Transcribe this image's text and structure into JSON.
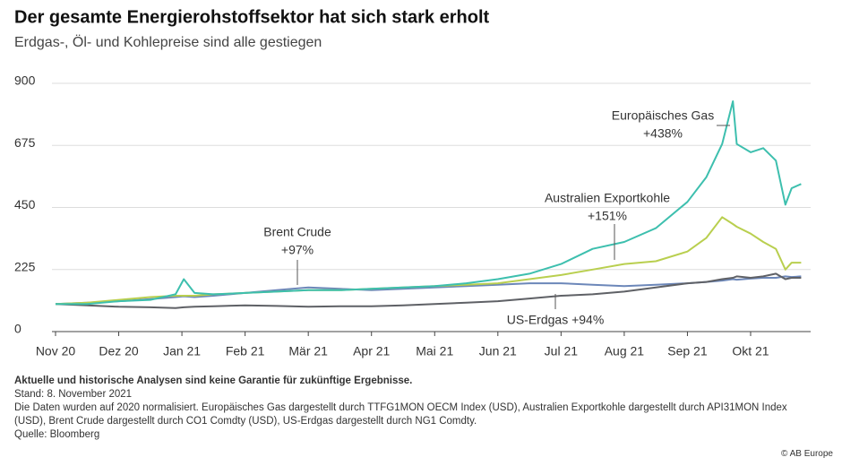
{
  "chart_data": {
    "type": "line",
    "title": "Der gesamte Energierohstoffsektor hat sich stark erholt",
    "subtitle": "Erdgas-, Öl- und Kohlepreise sind alle gestiegen",
    "x": [
      0,
      0.5,
      1,
      1.5,
      1.9,
      2.03,
      2.2,
      2.5,
      3,
      3.5,
      4,
      4.5,
      5,
      5.5,
      6,
      6.5,
      7,
      7.5,
      8,
      8.5,
      9,
      9.5,
      10,
      10.3,
      10.55,
      10.72,
      10.78,
      11,
      11.2,
      11.4,
      11.55,
      11.65,
      11.8
    ],
    "xlim": [
      0,
      11.95
    ],
    "xticks": [
      {
        "value": 0,
        "label": "Nov 20"
      },
      {
        "value": 1,
        "label": "Dez 20"
      },
      {
        "value": 2,
        "label": "Jan 21"
      },
      {
        "value": 3,
        "label": "Feb 21"
      },
      {
        "value": 4,
        "label": "Mär 21"
      },
      {
        "value": 5,
        "label": "Apr 21"
      },
      {
        "value": 6,
        "label": "Mai 21"
      },
      {
        "value": 7,
        "label": "Jun 21"
      },
      {
        "value": 8,
        "label": "Jul 21"
      },
      {
        "value": 9,
        "label": "Aug 21"
      },
      {
        "value": 10,
        "label": "Sep 21"
      },
      {
        "value": 11,
        "label": "Okt 21"
      }
    ],
    "ylim": [
      0,
      900
    ],
    "yticks": [
      0,
      225,
      450,
      675,
      900
    ],
    "grid": true,
    "series": [
      {
        "name": "Europäisches Gas",
        "color": "#3dbfae",
        "values": [
          100,
          100,
          110,
          115,
          135,
          190,
          140,
          135,
          140,
          145,
          150,
          150,
          155,
          160,
          165,
          175,
          190,
          210,
          245,
          300,
          325,
          375,
          470,
          560,
          680,
          835,
          680,
          650,
          665,
          620,
          460,
          520,
          535
        ]
      },
      {
        "name": "Australien Exportkohle",
        "color": "#b9cf4f",
        "values": [
          100,
          105,
          115,
          125,
          130,
          130,
          130,
          135,
          140,
          145,
          150,
          150,
          155,
          160,
          165,
          170,
          175,
          190,
          205,
          225,
          245,
          255,
          290,
          340,
          415,
          390,
          380,
          355,
          325,
          300,
          225,
          250,
          250
        ]
      },
      {
        "name": "Brent Crude",
        "color": "#6c87b9",
        "values": [
          100,
          105,
          110,
          118,
          125,
          128,
          125,
          130,
          140,
          150,
          160,
          155,
          150,
          155,
          160,
          165,
          170,
          175,
          175,
          170,
          165,
          170,
          175,
          180,
          185,
          190,
          188,
          192,
          195,
          195,
          200,
          198,
          200
        ]
      },
      {
        "name": "US-Erdgas",
        "color": "#5f6166",
        "values": [
          100,
          95,
          90,
          88,
          85,
          88,
          90,
          92,
          95,
          93,
          90,
          92,
          92,
          95,
          100,
          105,
          110,
          120,
          130,
          135,
          145,
          160,
          175,
          180,
          190,
          195,
          200,
          195,
          200,
          210,
          190,
          195,
          195
        ]
      }
    ],
    "annotations": [
      {
        "label": "Europäisches Gas",
        "change": "+438%"
      },
      {
        "label": "Australien Exportkohle",
        "change": "+151%"
      },
      {
        "label": "Brent Crude",
        "change": "+97%"
      },
      {
        "label": "US-Erdgas +94%"
      }
    ],
    "note": "Aktuelle und historische Analysen sind keine Garantie für zukünftige Ergebnisse.",
    "date_note": "Stand: 8. November 2021",
    "description": "Die Daten wurden auf 2020 normalisiert. Europäisches Gas dargestellt durch TTFG1MON OECM Index (USD), Australien Exportkohle dargestellt durch API31MON Index (USD), Brent Crude dargestellt durch CO1 Comdty (USD), US-Erdgas dargestellt durch NG1 Comdty.",
    "source": "Quelle: Bloomberg",
    "copyright": "© AB Europe"
  }
}
